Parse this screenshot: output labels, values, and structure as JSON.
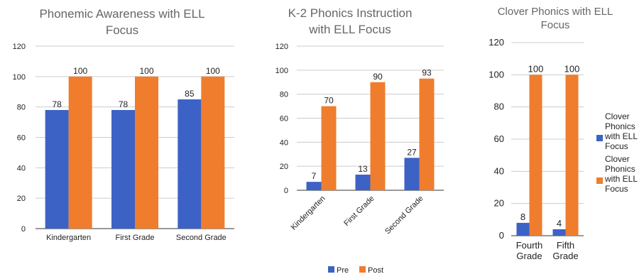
{
  "colors": {
    "pre": "#3c62c6",
    "post": "#ef7d2d",
    "grid": "#cccccc",
    "title": "#666666",
    "text": "#222222"
  },
  "chart_data": [
    {
      "type": "bar",
      "title_lines": [
        "Phonemic Awareness with ELL",
        "Focus"
      ],
      "categories": [
        "Kindergarten",
        "First Grade",
        "Second Grade"
      ],
      "series": [
        {
          "key": "pre",
          "values": [
            78,
            78,
            85
          ]
        },
        {
          "key": "post",
          "values": [
            100,
            100,
            100
          ]
        }
      ],
      "ylim": [
        0,
        120
      ],
      "yticks": [
        "0",
        "20",
        "40",
        "60",
        "80",
        "100",
        "120"
      ],
      "grid": true,
      "xlabel_rotation": 0
    },
    {
      "type": "bar",
      "title_lines": [
        "K-2 Phonics Instruction",
        "with ELL Focus"
      ],
      "categories": [
        "Kindergarten",
        "First Grade",
        "Second Grade"
      ],
      "series": [
        {
          "key": "pre",
          "values": [
            7,
            13,
            27
          ]
        },
        {
          "key": "post",
          "values": [
            70,
            90,
            93
          ]
        }
      ],
      "ylim": [
        0,
        120
      ],
      "yticks": [
        "0",
        "20",
        "40",
        "60",
        "80",
        "100",
        "120"
      ],
      "grid": true,
      "xlabel_rotation": -45,
      "legend": {
        "position": "bottom",
        "entries": [
          "Pre",
          "Post"
        ]
      }
    },
    {
      "type": "bar",
      "title_lines": [
        "Clover Phonics with ELL",
        "Focus"
      ],
      "categories": [
        "Fourth Grade",
        "Fifth Grade"
      ],
      "category_lines": [
        [
          "Fourth",
          "Grade"
        ],
        [
          "Fifth",
          "Grade"
        ]
      ],
      "series": [
        {
          "key": "pre",
          "values": [
            8,
            4
          ]
        },
        {
          "key": "post",
          "values": [
            100,
            100
          ]
        }
      ],
      "ylim": [
        0,
        120
      ],
      "yticks": [
        "0",
        "20",
        "40",
        "60",
        "80",
        "100",
        "120"
      ],
      "grid": true,
      "xlabel_rotation": 0,
      "legend": {
        "position": "right",
        "entries": [
          {
            "key": "pre",
            "lines": [
              "Clover",
              "Phonics",
              "with ELL",
              "Focus"
            ]
          },
          {
            "key": "post",
            "lines": [
              "Clover",
              "Phonics",
              "with ELL",
              "Focus"
            ]
          }
        ]
      }
    }
  ]
}
